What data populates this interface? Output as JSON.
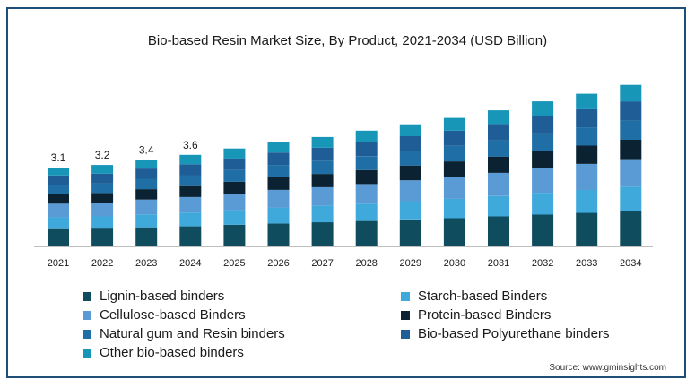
{
  "chart_data": {
    "type": "bar",
    "stacked": true,
    "title": "Bio-based Resin Market Size, By Product, 2021-2034 (USD Billion)",
    "xlabel": "",
    "ylabel": "",
    "categories": [
      "2021",
      "2022",
      "2023",
      "2024",
      "2025",
      "2026",
      "2027",
      "2028",
      "2029",
      "2030",
      "2031",
      "2032",
      "2033",
      "2034"
    ],
    "totals": [
      3.1,
      3.2,
      3.4,
      3.6,
      3.85,
      4.1,
      4.3,
      4.55,
      4.8,
      5.05,
      5.35,
      5.7,
      6.0,
      6.35
    ],
    "total_labels": [
      "3.1",
      "3.2",
      "3.4",
      "3.6",
      "",
      "",
      "",
      "",
      "",
      "",
      "",
      "",
      "",
      ""
    ],
    "ylim": [
      0,
      7
    ],
    "grid": false,
    "legend_position": "bottom",
    "series": [
      {
        "name": "Lignin-based binders",
        "color": "#0f4d5e",
        "values": [
          0.68,
          0.7,
          0.75,
          0.79,
          0.85,
          0.9,
          0.95,
          1.0,
          1.06,
          1.11,
          1.18,
          1.25,
          1.32,
          1.4
        ]
      },
      {
        "name": "Starch-based Binders",
        "color": "#3fa9dc",
        "values": [
          0.47,
          0.48,
          0.51,
          0.54,
          0.58,
          0.62,
          0.65,
          0.68,
          0.72,
          0.76,
          0.8,
          0.86,
          0.9,
          0.95
        ]
      },
      {
        "name": "Cellulose-based Binders",
        "color": "#5b9bd5",
        "values": [
          0.53,
          0.54,
          0.58,
          0.61,
          0.65,
          0.7,
          0.73,
          0.77,
          0.82,
          0.86,
          0.91,
          0.97,
          1.02,
          1.08
        ]
      },
      {
        "name": "Protein-based Binders",
        "color": "#0b2233",
        "values": [
          0.37,
          0.38,
          0.41,
          0.43,
          0.46,
          0.49,
          0.52,
          0.55,
          0.58,
          0.61,
          0.64,
          0.68,
          0.72,
          0.76
        ]
      },
      {
        "name": "Natural gum and Resin binders",
        "color": "#1f6ea5",
        "values": [
          0.37,
          0.38,
          0.41,
          0.43,
          0.46,
          0.49,
          0.52,
          0.55,
          0.58,
          0.61,
          0.64,
          0.68,
          0.72,
          0.76
        ]
      },
      {
        "name": "Bio-based Polyurethane binders",
        "color": "#1f5d96",
        "values": [
          0.37,
          0.38,
          0.4,
          0.43,
          0.46,
          0.49,
          0.51,
          0.54,
          0.57,
          0.6,
          0.64,
          0.68,
          0.71,
          0.75
        ]
      },
      {
        "name": "Other bio-based binders",
        "color": "#1796b8",
        "values": [
          0.31,
          0.34,
          0.34,
          0.37,
          0.39,
          0.41,
          0.42,
          0.46,
          0.47,
          0.5,
          0.54,
          0.58,
          0.61,
          0.65
        ]
      }
    ]
  },
  "legend": {
    "items": [
      {
        "label": "Lignin-based binders",
        "color": "#0f4d5e"
      },
      {
        "label": "Starch-based Binders",
        "color": "#3fa9dc"
      },
      {
        "label": "Cellulose-based Binders",
        "color": "#5b9bd5"
      },
      {
        "label": "Protein-based Binders",
        "color": "#0b2233"
      },
      {
        "label": "Natural gum and Resin binders",
        "color": "#1f6ea5"
      },
      {
        "label": "Bio-based Polyurethane binders",
        "color": "#1f5d96"
      },
      {
        "label": "Other bio-based binders",
        "color": "#1796b8"
      }
    ]
  },
  "source": "Source: www.gminsights.com"
}
